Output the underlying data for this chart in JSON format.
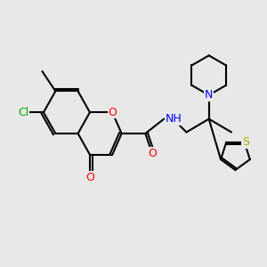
{
  "background_color": "#e8e8e8",
  "bond_color": "#000000",
  "line_width": 1.5,
  "atom_colors": {
    "O": "#ff0000",
    "N": "#0000ff",
    "Cl": "#00aa00",
    "S": "#aaaa00",
    "C": "#000000",
    "H": "#000000"
  },
  "font_size": 9
}
